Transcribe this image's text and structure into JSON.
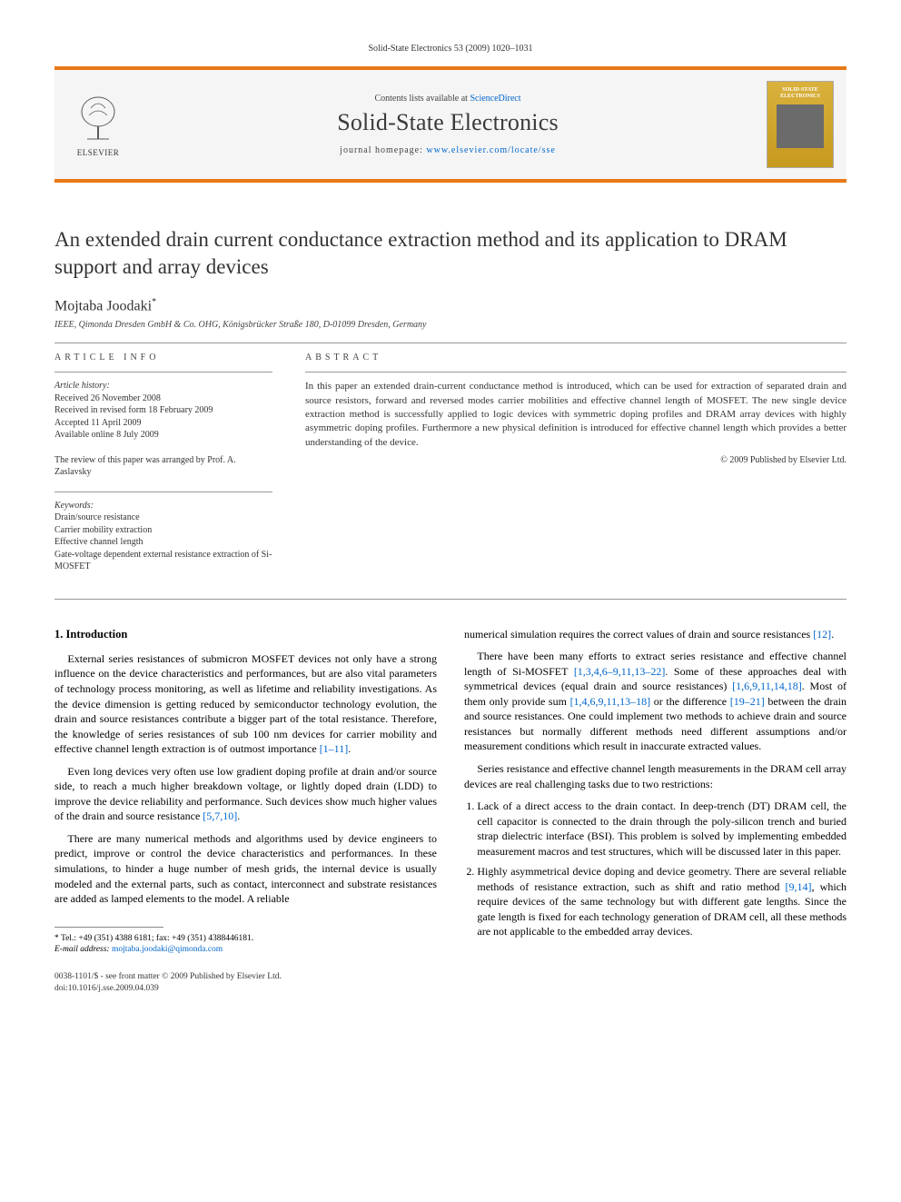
{
  "running_head": "Solid-State Electronics 53 (2009) 1020–1031",
  "masthead": {
    "contents_prefix": "Contents lists available at ",
    "contents_link_text": "ScienceDirect",
    "journal_name": "Solid-State Electronics",
    "homepage_prefix": "journal homepage: ",
    "homepage_link_text": "www.elsevier.com/locate/sse",
    "publisher_word": "ELSEVIER",
    "cover_thumb_title": "SOLID-STATE ELECTRONICS",
    "bar_color": "#e77817",
    "bg_color": "#f5f5f5"
  },
  "title": "An extended drain current conductance extraction method and its application to DRAM support and array devices",
  "author": "Mojtaba Joodaki",
  "author_marker": "*",
  "affiliation": "IEEE, Qimonda Dresden GmbH & Co. OHG, Königsbrücker Straße 180, D-01099 Dresden, Germany",
  "info_head": "article info",
  "abstract_head": "abstract",
  "history": {
    "label": "Article history:",
    "received": "Received 26 November 2008",
    "revised": "Received in revised form 18 February 2009",
    "accepted": "Accepted 11 April 2009",
    "online": "Available online 8 July 2009"
  },
  "review_note": "The review of this paper was arranged by Prof. A. Zaslavsky",
  "keywords": {
    "label": "Keywords:",
    "items": [
      "Drain/source resistance",
      "Carrier mobility extraction",
      "Effective channel length",
      "Gate-voltage dependent external resistance extraction of Si-MOSFET"
    ]
  },
  "abstract": "In this paper an extended drain-current conductance method is introduced, which can be used for extraction of separated drain and source resistors, forward and reversed modes carrier mobilities and effective channel length of MOSFET. The new single device extraction method is successfully applied to logic devices with symmetric doping profiles and DRAM array devices with highly asymmetric doping profiles. Furthermore a new physical definition is introduced for effective channel length which provides a better understanding of the device.",
  "copyright": "© 2009 Published by Elsevier Ltd.",
  "section1_head": "1. Introduction",
  "left_col_paras": [
    "External series resistances of submicron MOSFET devices not only have a strong influence on the device characteristics and performances, but are also vital parameters of technology process monitoring, as well as lifetime and reliability investigations. As the device dimension is getting reduced by semiconductor technology evolution, the drain and source resistances contribute a bigger part of the total resistance. Therefore, the knowledge of series resistances of sub 100 nm devices for carrier mobility and effective channel length extraction is of outmost importance [1–11].",
    "Even long devices very often use low gradient doping profile at drain and/or source side, to reach a much higher breakdown voltage, or lightly doped drain (LDD) to improve the device reliability and performance. Such devices show much higher values of the drain and source resistance [5,7,10].",
    "There are many numerical methods and algorithms used by device engineers to predict, improve or control the device characteristics and performances. In these simulations, to hinder a huge number of mesh grids, the internal device is usually modeled and the external parts, such as contact, interconnect and substrate resistances are added as lamped elements to the model. A reliable"
  ],
  "right_col_paras_top": [
    "numerical simulation requires the correct values of drain and source resistances [12].",
    "There have been many efforts to extract series resistance and effective channel length of Si-MOSFET [1,3,4,6–9,11,13–22]. Some of these approaches deal with symmetrical devices (equal drain and source resistances) [1,6,9,11,14,18]. Most of them only provide sum [1,4,6,9,11,13–18] or the difference [19–21] between the drain and source resistances. One could implement two methods to achieve drain and source resistances but normally different methods need different assumptions and/or measurement conditions which result in inaccurate extracted values.",
    "Series resistance and effective channel length measurements in the DRAM cell array devices are real challenging tasks due to two restrictions:"
  ],
  "right_col_list": [
    "Lack of a direct access to the drain contact. In deep-trench (DT) DRAM cell, the cell capacitor is connected to the drain through the poly-silicon trench and buried strap dielectric interface (BSI). This problem is solved by implementing embedded measurement macros and test structures, which will be discussed later in this paper.",
    "Highly asymmetrical device doping and device geometry. There are several reliable methods of resistance extraction, such as shift and ratio method [9,14], which require devices of the same technology but with different gate lengths. Since the gate length is fixed for each technology generation of DRAM cell, all these methods are not applicable to the embedded array devices."
  ],
  "footnote": {
    "tel": "* Tel.: +49 (351) 4388 6181; fax: +49 (351) 4388446181.",
    "email_label": "E-mail address:",
    "email": "mojtaba.joodaki@qimonda.com"
  },
  "doi_block": {
    "line1": "0038-1101/$ - see front matter © 2009 Published by Elsevier Ltd.",
    "line2": "doi:10.1016/j.sse.2009.04.039"
  },
  "link_color": "#0066cc",
  "citation_refs": {
    "r1": "[1–11]",
    "r2": "[5,7,10]",
    "r3": "[12]",
    "r4": "[1,3,4,6–9,11,13–22]",
    "r5": "[1,6,9,11,14,18]",
    "r6": "[1,4,6,9,11,13–18]",
    "r7": "[19–21]",
    "r8": "[9,14]"
  }
}
